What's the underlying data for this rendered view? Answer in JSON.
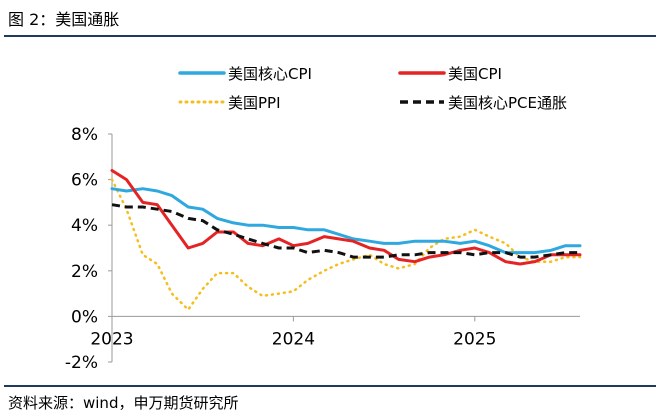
{
  "header": {
    "title": "图 2：美国通胀"
  },
  "footer": {
    "source": "资料来源：wind，申万期货研究所"
  },
  "chart_data": {
    "type": "line",
    "title": "美国通胀",
    "xlabel": "",
    "ylabel": "",
    "ylim": [
      -2,
      8
    ],
    "yticks": [
      "8%",
      "6%",
      "4%",
      "2%",
      "0%",
      "-2%"
    ],
    "ytick_values": [
      8,
      6,
      4,
      2,
      0,
      -2
    ],
    "xticks": [
      "2023",
      "2024",
      "2025"
    ],
    "xtick_values": [
      2023,
      2024,
      2025
    ],
    "xlim": [
      2023,
      2025.58
    ],
    "series": [
      {
        "name": "美国核心CPI",
        "color": "#2ea8df",
        "style": "solid",
        "x": [
          2023.0,
          2023.08,
          2023.17,
          2023.25,
          2023.33,
          2023.42,
          2023.5,
          2023.58,
          2023.67,
          2023.75,
          2023.83,
          2023.92,
          2024.0,
          2024.08,
          2024.17,
          2024.25,
          2024.33,
          2024.42,
          2024.5,
          2024.58,
          2024.67,
          2024.75,
          2024.83,
          2024.92,
          2025.0,
          2025.08,
          2025.17,
          2025.25,
          2025.33,
          2025.42,
          2025.5,
          2025.58
        ],
        "values": [
          5.6,
          5.5,
          5.6,
          5.5,
          5.3,
          4.8,
          4.7,
          4.3,
          4.1,
          4.0,
          4.0,
          3.9,
          3.9,
          3.8,
          3.8,
          3.6,
          3.4,
          3.3,
          3.2,
          3.2,
          3.3,
          3.3,
          3.3,
          3.2,
          3.3,
          3.1,
          2.8,
          2.8,
          2.8,
          2.9,
          3.1,
          3.1
        ]
      },
      {
        "name": "美国CPI",
        "color": "#e42424",
        "style": "solid",
        "x": [
          2023.0,
          2023.08,
          2023.17,
          2023.25,
          2023.33,
          2023.42,
          2023.5,
          2023.58,
          2023.67,
          2023.75,
          2023.83,
          2023.92,
          2024.0,
          2024.08,
          2024.17,
          2024.25,
          2024.33,
          2024.42,
          2024.5,
          2024.58,
          2024.67,
          2024.75,
          2024.83,
          2024.92,
          2025.0,
          2025.08,
          2025.17,
          2025.25,
          2025.33,
          2025.42,
          2025.5,
          2025.58
        ],
        "values": [
          6.4,
          6.0,
          5.0,
          4.9,
          4.0,
          3.0,
          3.2,
          3.7,
          3.7,
          3.2,
          3.1,
          3.4,
          3.1,
          3.2,
          3.5,
          3.4,
          3.3,
          3.0,
          2.9,
          2.5,
          2.4,
          2.6,
          2.7,
          2.9,
          3.0,
          2.8,
          2.4,
          2.3,
          2.4,
          2.7,
          2.7,
          2.7
        ]
      },
      {
        "name": "美国PPI",
        "color": "#f5be1c",
        "style": "dotted",
        "x": [
          2023.0,
          2023.08,
          2023.17,
          2023.25,
          2023.33,
          2023.42,
          2023.5,
          2023.58,
          2023.67,
          2023.75,
          2023.83,
          2023.92,
          2024.0,
          2024.08,
          2024.17,
          2024.25,
          2024.33,
          2024.42,
          2024.5,
          2024.58,
          2024.67,
          2024.75,
          2024.83,
          2024.92,
          2025.0,
          2025.08,
          2025.17,
          2025.25,
          2025.33,
          2025.42,
          2025.5,
          2025.58
        ],
        "values": [
          6.0,
          4.7,
          2.7,
          2.3,
          1.0,
          0.3,
          1.2,
          1.9,
          1.9,
          1.3,
          0.9,
          1.0,
          1.1,
          1.6,
          2.0,
          2.3,
          2.5,
          2.7,
          2.3,
          2.1,
          2.3,
          3.0,
          3.4,
          3.5,
          3.8,
          3.5,
          3.2,
          2.6,
          2.4,
          2.4,
          2.6,
          2.6
        ]
      },
      {
        "name": "美国核心PCE通胀",
        "color": "#111111",
        "style": "dashed",
        "x": [
          2023.0,
          2023.08,
          2023.17,
          2023.25,
          2023.33,
          2023.42,
          2023.5,
          2023.58,
          2023.67,
          2023.75,
          2023.83,
          2023.92,
          2024.0,
          2024.08,
          2024.17,
          2024.25,
          2024.33,
          2024.42,
          2024.5,
          2024.58,
          2024.67,
          2024.75,
          2024.83,
          2024.92,
          2025.0,
          2025.08,
          2025.17,
          2025.25,
          2025.33,
          2025.42,
          2025.5,
          2025.58
        ],
        "values": [
          4.9,
          4.8,
          4.8,
          4.7,
          4.6,
          4.3,
          4.2,
          3.8,
          3.6,
          3.4,
          3.2,
          3.0,
          3.0,
          2.8,
          2.9,
          2.8,
          2.6,
          2.6,
          2.6,
          2.7,
          2.7,
          2.8,
          2.8,
          2.8,
          2.7,
          2.8,
          2.8,
          2.6,
          2.6,
          2.7,
          2.8,
          2.8
        ]
      }
    ],
    "legend": "top"
  }
}
